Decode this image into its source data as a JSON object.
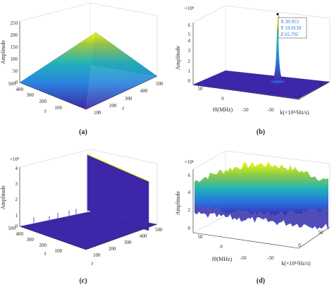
{
  "chart_data": [
    {
      "panel": "(a)",
      "type": "surface",
      "zlabel": "Amplitude",
      "xlabel": "t",
      "ylabel": "τ",
      "zticks": [
        "0",
        "50",
        "100",
        "150",
        "200",
        "250"
      ],
      "xticks": [
        "100",
        "200",
        "300",
        "400",
        "500"
      ],
      "yticks": [
        "100",
        "200",
        "300",
        "400",
        "500"
      ],
      "zlim": [
        0,
        250
      ],
      "xlim": [
        0,
        500
      ],
      "ylim": [
        0,
        500
      ],
      "shape": "pyramid",
      "peak": {
        "t": 250,
        "tau": 250,
        "amplitude": 250
      }
    },
    {
      "panel": "(b)",
      "type": "surface",
      "zlabel": "Amplitude",
      "xlabel": "k(×10¹²Hz/s)",
      "ylabel": "f0(MHz)",
      "zexp": "×10⁴",
      "zticks": [
        "0",
        "1",
        "2",
        "3",
        "4",
        "5",
        "6"
      ],
      "xticks": [
        "-50",
        "0",
        "50"
      ],
      "yticks": [
        "-50",
        "0",
        "50"
      ],
      "shape": "single-peak",
      "peak": {
        "x": 39.953,
        "y": 19.9139,
        "z": 65.792
      },
      "datatip": [
        "X 39.953",
        "Y 19.9139",
        "Z 65.792"
      ]
    },
    {
      "panel": "(c)",
      "type": "surface",
      "zlabel": "Amplitude",
      "xlabel": "t",
      "ylabel": "τ",
      "zexp": "×10⁶",
      "zticks": [
        "0",
        "1",
        "2",
        "3",
        "4"
      ],
      "xticks": [
        "100",
        "200",
        "300",
        "400",
        "500"
      ],
      "yticks": [
        "100",
        "200",
        "300",
        "400",
        "500"
      ],
      "shape": "wall"
    },
    {
      "panel": "(d)",
      "type": "surface",
      "zlabel": "Amplitude",
      "xlabel": "k(×10¹²Hz/s)",
      "ylabel": "f0(MHz)",
      "zexp": "×10⁶",
      "zticks": [
        "0",
        "2",
        "4",
        "6"
      ],
      "xticks": [
        "-50",
        "0",
        "50"
      ],
      "yticks": [
        "-50",
        "0",
        "50"
      ],
      "shape": "noise"
    }
  ],
  "colors": {
    "low": "#3e26a8",
    "mid": "#1fb3b8",
    "high": "#f9fb0e"
  },
  "captions": [
    "(a)",
    "(b)",
    "(c)",
    "(d)"
  ]
}
